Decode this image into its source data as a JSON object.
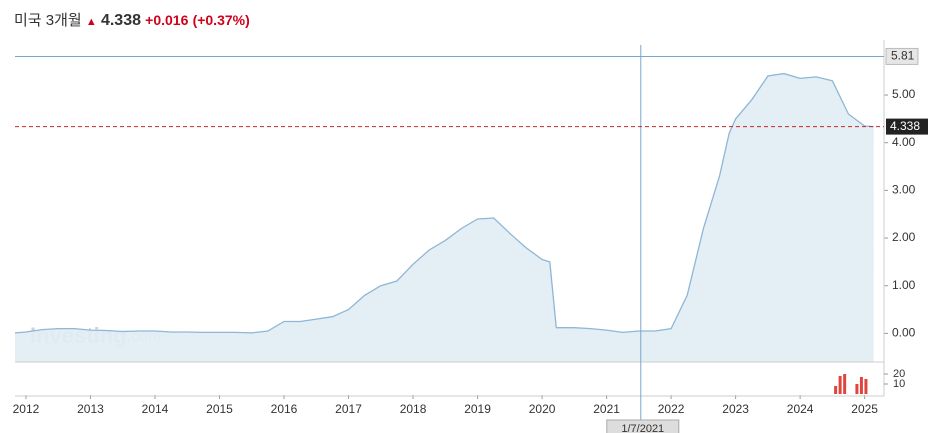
{
  "header": {
    "name": "미국 3개월",
    "price": "4.338",
    "change": "+0.016",
    "change_pct": "(+0.37%)"
  },
  "chart_data": [
    {
      "type": "area",
      "watermark": {
        "brand": "Investing",
        "suffix": ".com"
      },
      "x": [
        2011.83,
        2012.0,
        2012.25,
        2012.5,
        2012.75,
        2013.0,
        2013.25,
        2013.5,
        2013.75,
        2014.0,
        2014.25,
        2014.5,
        2014.75,
        2015.0,
        2015.25,
        2015.5,
        2015.75,
        2016.0,
        2016.25,
        2016.5,
        2016.75,
        2017.0,
        2017.25,
        2017.5,
        2017.75,
        2018.0,
        2018.25,
        2018.5,
        2018.75,
        2019.0,
        2019.25,
        2019.5,
        2019.75,
        2020.0,
        2020.12,
        2020.22,
        2020.5,
        2020.75,
        2021.0,
        2021.25,
        2021.5,
        2021.75,
        2022.0,
        2022.25,
        2022.5,
        2022.75,
        2022.9,
        2023.0,
        2023.25,
        2023.5,
        2023.75,
        2024.0,
        2024.25,
        2024.5,
        2024.75,
        2025.0,
        2025.14
      ],
      "values": [
        0.01,
        0.03,
        0.08,
        0.1,
        0.1,
        0.07,
        0.06,
        0.04,
        0.05,
        0.05,
        0.03,
        0.03,
        0.02,
        0.02,
        0.02,
        0.01,
        0.05,
        0.25,
        0.25,
        0.3,
        0.35,
        0.5,
        0.8,
        1.0,
        1.1,
        1.45,
        1.75,
        1.95,
        2.2,
        2.4,
        2.42,
        2.1,
        1.8,
        1.55,
        1.5,
        0.12,
        0.12,
        0.1,
        0.07,
        0.02,
        0.05,
        0.05,
        0.1,
        0.8,
        2.2,
        3.3,
        4.2,
        4.5,
        4.9,
        5.4,
        5.45,
        5.35,
        5.38,
        5.3,
        4.6,
        4.35,
        4.338
      ],
      "color": "#8fb6d6",
      "fill": "#e1ecf4",
      "xlim": [
        2011.83,
        2025.3
      ],
      "xticks": [
        2012,
        2013,
        2014,
        2015,
        2016,
        2017,
        2018,
        2019,
        2020,
        2021,
        2022,
        2023,
        2024,
        2025
      ],
      "ylim": [
        -0.6,
        6.05
      ],
      "yticks": [
        {
          "value": 0,
          "label": "0.00"
        },
        {
          "value": 1,
          "label": "1.00"
        },
        {
          "value": 2,
          "label": "2.00"
        },
        {
          "value": 3,
          "label": "3.00"
        },
        {
          "value": 4,
          "label": "4.00"
        },
        {
          "value": 5,
          "label": "5.00"
        }
      ],
      "grid": false,
      "last": 4.338,
      "crosshair": {
        "x": 2021.53,
        "x_label": "1/7/2021",
        "y": 5.81
      }
    },
    {
      "type": "bar",
      "x": [
        2024.55,
        2024.62,
        2024.69,
        2024.88,
        2024.95,
        2025.02
      ],
      "values": [
        8,
        18,
        20,
        10,
        17,
        15
      ],
      "color": "#e0453d",
      "xlim": [
        2011.83,
        2025.3
      ],
      "ylim": [
        0,
        28
      ],
      "yticks": [
        10,
        20
      ]
    }
  ]
}
